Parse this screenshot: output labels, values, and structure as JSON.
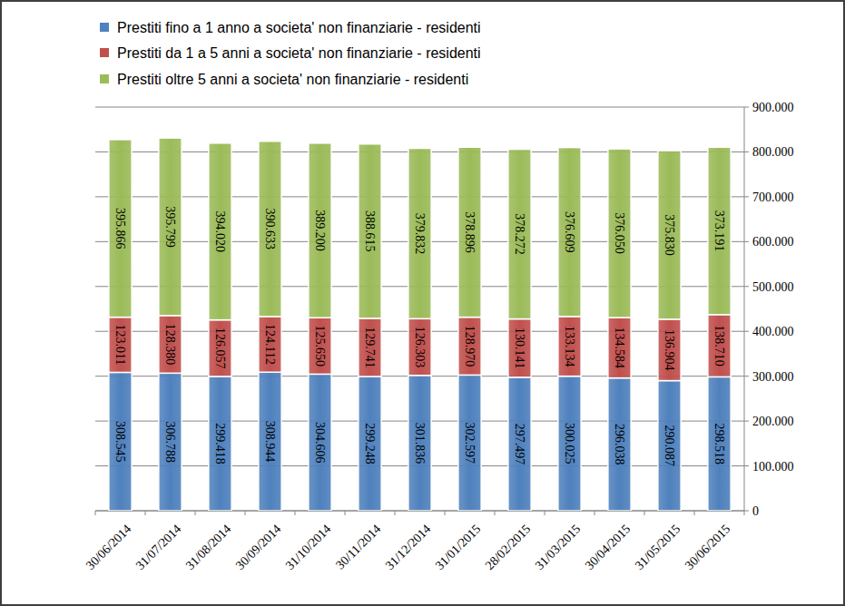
{
  "chart_data": {
    "type": "bar",
    "stacked": true,
    "data_labels": true,
    "grid": true,
    "legend": "top",
    "categories": [
      "30/06/2014",
      "31/07/2014",
      "31/08/2014",
      "30/09/2014",
      "31/10/2014",
      "30/11/2014",
      "31/12/2014",
      "31/01/2015",
      "28/02/2015",
      "31/03/2015",
      "30/04/2015",
      "31/05/2015",
      "30/06/2015"
    ],
    "series": [
      {
        "name": "Prestiti fino a 1 anno a societa' non finanziarie - residenti",
        "color": "#4f81bd",
        "values": [
          308545,
          306788,
          299418,
          308944,
          304606,
          299248,
          301836,
          302597,
          297497,
          300025,
          296038,
          290087,
          298518
        ],
        "value_labels": [
          "308.545",
          "306.788",
          "299.418",
          "308.944",
          "304.606",
          "299.248",
          "301.836",
          "302.597",
          "297.497",
          "300.025",
          "296.038",
          "290.087",
          "298.518"
        ]
      },
      {
        "name": "Prestiti da 1 a 5 anni a societa' non finanziarie - residenti",
        "color": "#c0504d",
        "values": [
          123011,
          128380,
          126057,
          124112,
          125650,
          129741,
          126303,
          128970,
          130141,
          133134,
          134584,
          136904,
          138710
        ],
        "value_labels": [
          "123.011",
          "128.380",
          "126.057",
          "124.112",
          "125.650",
          "129.741",
          "126.303",
          "128.970",
          "130.141",
          "133.134",
          "134.584",
          "136.904",
          "138.710"
        ]
      },
      {
        "name": "Prestiti oltre 5 anni a societa' non finanziarie - residenti",
        "color": "#9bbb59",
        "values": [
          395866,
          395799,
          394020,
          390633,
          389200,
          388615,
          379832,
          378896,
          378272,
          376609,
          376050,
          375830,
          373191
        ],
        "value_labels": [
          "395.866",
          "395.799",
          "394.020",
          "390.633",
          "389.200",
          "388.615",
          "379.832",
          "378.896",
          "378.272",
          "376.609",
          "376.050",
          "375.830",
          "373.191"
        ]
      }
    ],
    "ylim": [
      0,
      900000
    ],
    "yticks": [
      0,
      {
        "value": 100000,
        "label": "100.000"
      },
      {
        "value": 200000,
        "label": "200.000"
      },
      {
        "value": 300000,
        "label": "300.000"
      },
      {
        "value": 400000,
        "label": "400.000"
      },
      {
        "value": 500000,
        "label": "500.000"
      },
      {
        "value": 600000,
        "label": "600.000"
      },
      {
        "value": 700000,
        "label": "700.000"
      },
      {
        "value": 800000,
        "label": "800.000"
      },
      {
        "value": 900000,
        "label": "900.000"
      }
    ]
  }
}
